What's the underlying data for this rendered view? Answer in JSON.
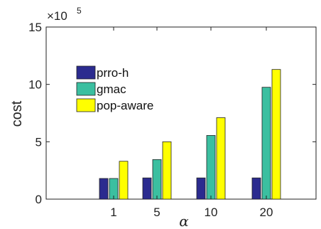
{
  "chart_data": {
    "type": "bar",
    "categories": [
      "1",
      "5",
      "10",
      "20"
    ],
    "category_positions": [
      1,
      5,
      10,
      20
    ],
    "x_tick_labels": [
      "1",
      "5",
      "10",
      "20"
    ],
    "xlabel": "α",
    "ylabel": "cost",
    "y_multiplier_label": "×10",
    "y_multiplier_exponent": "5",
    "ylim": [
      0,
      15
    ],
    "y_ticks": [
      0,
      5,
      10,
      15
    ],
    "y_tick_labels": [
      "0",
      "5",
      "10",
      "15"
    ],
    "grid": false,
    "legend_position": "top-left",
    "series": [
      {
        "name": "prro-h",
        "color": "#2b2b8f",
        "values": [
          1.8,
          1.85,
          1.85,
          1.85
        ]
      },
      {
        "name": "gmac",
        "color": "#3bbfa0",
        "values": [
          1.8,
          3.45,
          5.55,
          9.75
        ]
      },
      {
        "name": "pop-aware",
        "color": "#ffff00",
        "values": [
          3.3,
          5.0,
          7.1,
          11.3
        ]
      }
    ]
  }
}
